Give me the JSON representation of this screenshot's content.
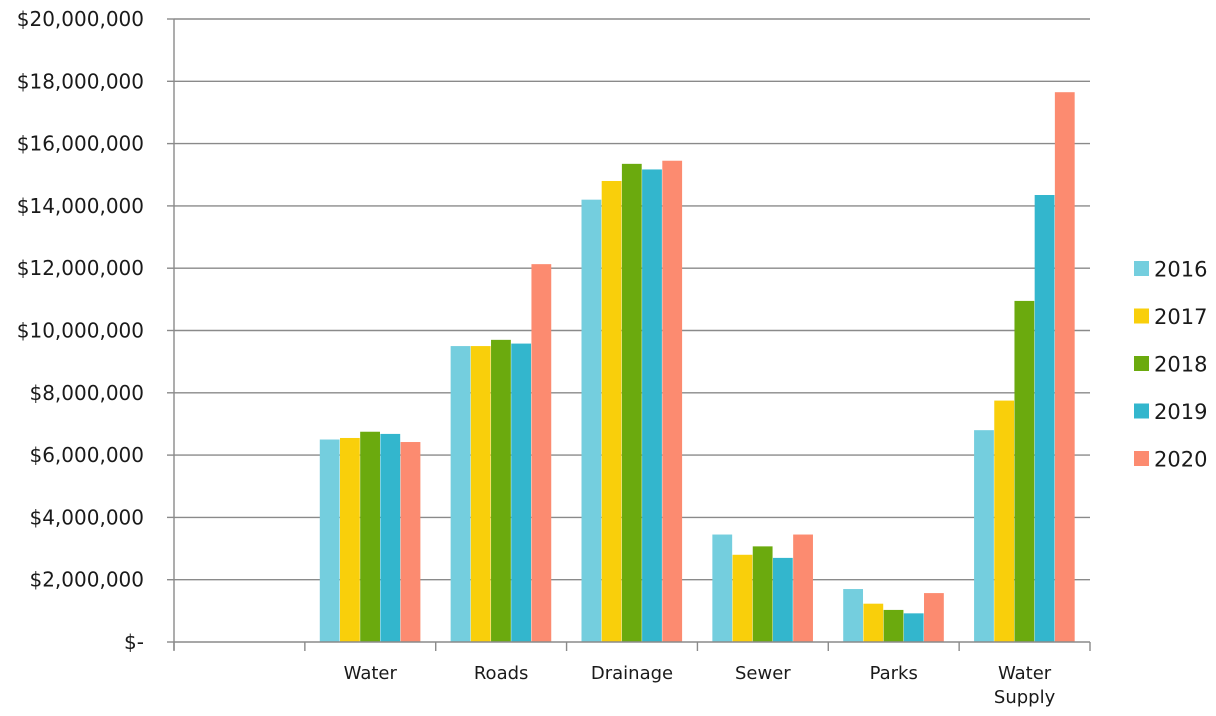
{
  "chart_data": {
    "type": "bar",
    "title": "",
    "xlabel": "",
    "ylabel": "",
    "categories": [
      "",
      "Water",
      "Roads",
      "Drainage",
      "Sewer",
      "Parks",
      "Water Supply"
    ],
    "series": [
      {
        "name": "2016",
        "color": "#74CEDE",
        "values": [
          null,
          6500000,
          9500000,
          14200000,
          3450000,
          1700000,
          6800000
        ]
      },
      {
        "name": "2017",
        "color": "#F9CF0B",
        "values": [
          null,
          6550000,
          9500000,
          14800000,
          2800000,
          1230000,
          7750000
        ]
      },
      {
        "name": "2018",
        "color": "#6BAA0E",
        "values": [
          null,
          6750000,
          9700000,
          15350000,
          3070000,
          1030000,
          10950000
        ]
      },
      {
        "name": "2019",
        "color": "#33B6CD",
        "values": [
          null,
          6680000,
          9580000,
          15170000,
          2700000,
          920000,
          14350000
        ]
      },
      {
        "name": "2020",
        "color": "#FC8B70",
        "values": [
          null,
          6420000,
          12130000,
          15450000,
          3450000,
          1570000,
          17650000
        ]
      }
    ],
    "ylim": [
      0,
      20000000
    ],
    "yticks": [
      0,
      2000000,
      4000000,
      6000000,
      8000000,
      10000000,
      12000000,
      14000000,
      16000000,
      18000000,
      20000000
    ],
    "ytick_labels": [
      "$-",
      "$2,000,000",
      "$4,000,000",
      "$6,000,000",
      "$8,000,000",
      "$10,000,000",
      "$12,000,000",
      "$14,000,000",
      "$16,000,000",
      "$18,000,000",
      "$20,000,000"
    ],
    "grid": true,
    "legend_position": "right"
  }
}
